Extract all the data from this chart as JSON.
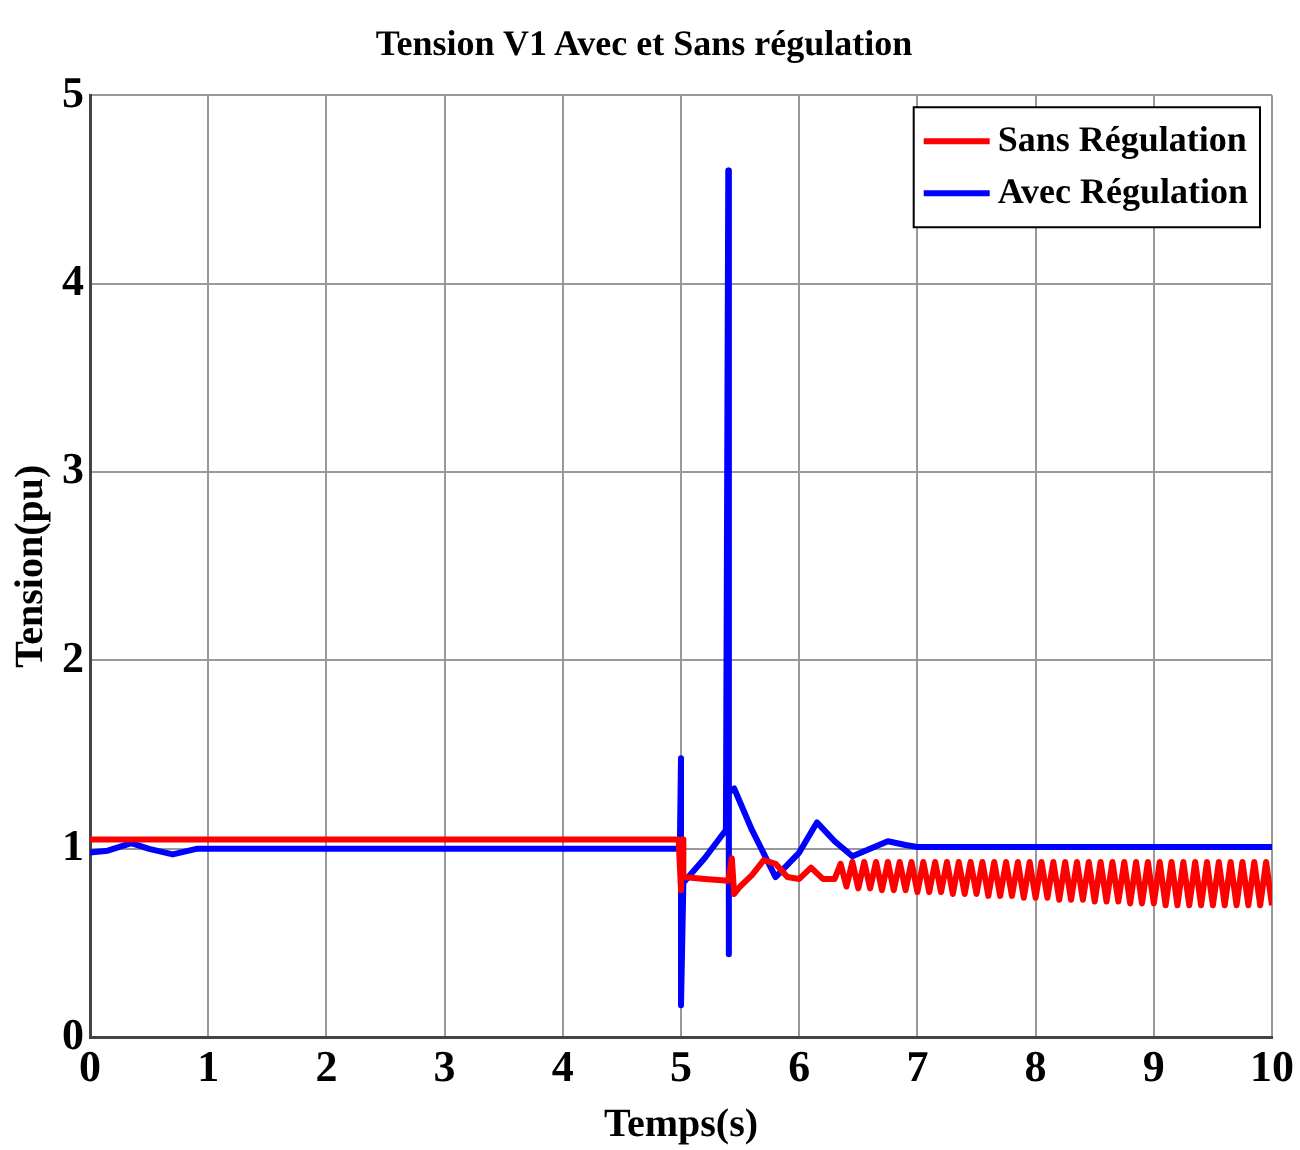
{
  "chart_data": {
    "type": "line",
    "title": "Tension V1 Avec et Sans régulation",
    "xlabel": "Temps(s)",
    "ylabel": "Tension(pu)",
    "xlim": [
      0,
      10
    ],
    "xticks": [
      0,
      1,
      2,
      3,
      4,
      5,
      6,
      7,
      8,
      9,
      10
    ],
    "ylim": [
      0,
      5
    ],
    "yticks": [
      0,
      1,
      2,
      3,
      4,
      5
    ],
    "grid": true,
    "legend": "top right",
    "marker": "none",
    "line_style": "solid",
    "series": [
      {
        "name": "Sans Régulation",
        "color": "#ff0000",
        "x": [
          0,
          4.98,
          5.0,
          5.01,
          5.02,
          5.2,
          5.4,
          5.43,
          5.45,
          5.5,
          5.6,
          5.7,
          5.8,
          5.9,
          6.0,
          6.1,
          6.2,
          6.3,
          6.35,
          6.4,
          6.45,
          6.5,
          6.55,
          6.6,
          6.65,
          6.7,
          6.75,
          6.8,
          6.85,
          6.9,
          6.95,
          7.0,
          7.05,
          7.1,
          7.15,
          7.2,
          7.25,
          7.3,
          7.35,
          7.4,
          7.45,
          7.5,
          7.55,
          7.6,
          7.65,
          7.7,
          7.75,
          7.8,
          7.85,
          7.9,
          7.95,
          8.0,
          8.05,
          8.1,
          8.15,
          8.2,
          8.25,
          8.3,
          8.35,
          8.4,
          8.45,
          8.5,
          8.55,
          8.6,
          8.65,
          8.7,
          8.75,
          8.8,
          8.85,
          8.9,
          8.95,
          9.0,
          9.05,
          9.1,
          9.15,
          9.2,
          9.25,
          9.3,
          9.35,
          9.4,
          9.45,
          9.5,
          9.55,
          9.6,
          9.65,
          9.7,
          9.75,
          9.8,
          9.85,
          9.9,
          9.95,
          10
        ],
        "values": [
          1.05,
          1.05,
          0.78,
          1.05,
          0.85,
          0.84,
          0.83,
          0.95,
          0.76,
          0.8,
          0.86,
          0.94,
          0.92,
          0.85,
          0.84,
          0.9,
          0.84,
          0.84,
          0.92,
          0.8,
          0.93,
          0.79,
          0.93,
          0.79,
          0.93,
          0.78,
          0.93,
          0.78,
          0.93,
          0.78,
          0.93,
          0.77,
          0.93,
          0.77,
          0.93,
          0.77,
          0.93,
          0.76,
          0.93,
          0.76,
          0.93,
          0.76,
          0.93,
          0.75,
          0.93,
          0.75,
          0.93,
          0.75,
          0.93,
          0.74,
          0.93,
          0.74,
          0.93,
          0.74,
          0.93,
          0.73,
          0.93,
          0.73,
          0.93,
          0.73,
          0.93,
          0.72,
          0.93,
          0.72,
          0.93,
          0.72,
          0.93,
          0.71,
          0.93,
          0.71,
          0.93,
          0.71,
          0.93,
          0.7,
          0.93,
          0.7,
          0.93,
          0.7,
          0.93,
          0.7,
          0.93,
          0.7,
          0.93,
          0.7,
          0.93,
          0.7,
          0.93,
          0.7,
          0.93,
          0.7,
          0.93,
          0.7
        ]
      },
      {
        "name": "Avec Régulation",
        "color": "#0000ff",
        "x": [
          0,
          0.15,
          0.35,
          0.5,
          0.7,
          0.9,
          1.1,
          4.99,
          5.0,
          5.0,
          5.02,
          5.2,
          5.38,
          5.4,
          5.4,
          5.41,
          5.45,
          5.6,
          5.8,
          6.0,
          6.15,
          6.3,
          6.45,
          6.6,
          6.75,
          6.9,
          7.0,
          10
        ],
        "values": [
          0.98,
          0.99,
          1.03,
          1.0,
          0.97,
          1.0,
          1.0,
          1.0,
          1.48,
          0.17,
          0.82,
          0.95,
          1.1,
          4.6,
          0.44,
          1.3,
          1.32,
          1.1,
          0.85,
          0.98,
          1.14,
          1.04,
          0.96,
          1.0,
          1.04,
          1.02,
          1.01,
          1.01
        ]
      }
    ]
  }
}
